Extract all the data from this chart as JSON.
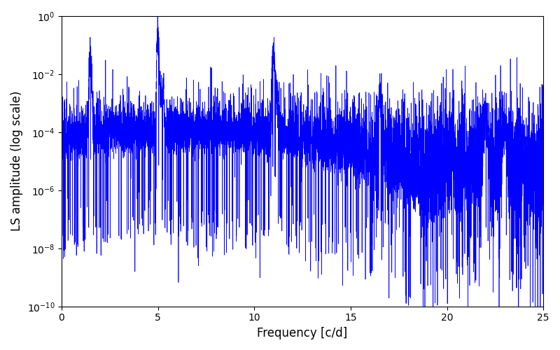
{
  "title": "",
  "xlabel": "Frequency [c/d]",
  "ylabel": "LS amplitude (log scale)",
  "xlim": [
    0,
    25
  ],
  "ylim": [
    1e-10,
    1.0
  ],
  "line_color": "#0000ff",
  "line_width": 0.5,
  "background_color": "#ffffff",
  "figsize": [
    8.0,
    5.0
  ],
  "dpi": 100,
  "yscale": "log",
  "noise_floor_log_mean": -11.5,
  "noise_floor_log_sigma": 2.0,
  "n_points": 8000,
  "freq_max": 25.0
}
